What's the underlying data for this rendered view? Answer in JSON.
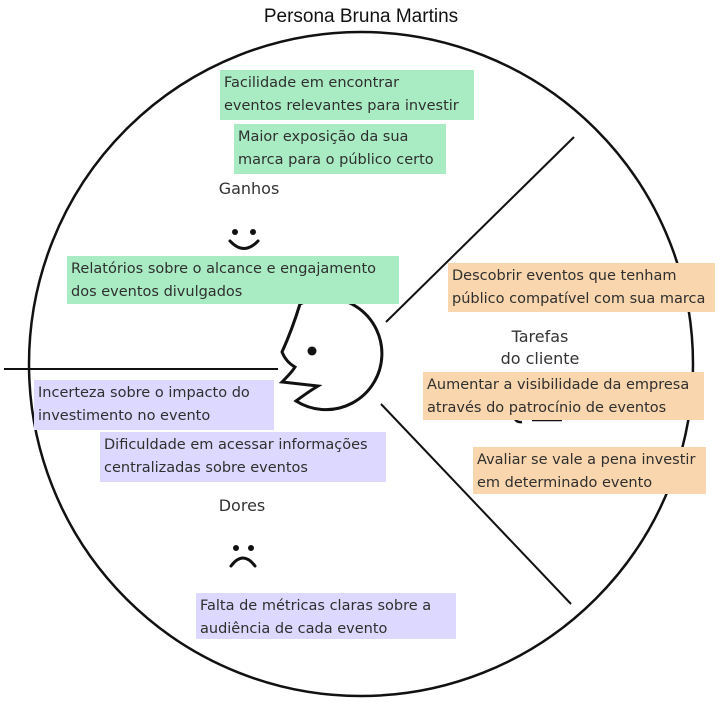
{
  "title": "Persona Bruna Martins",
  "sections": {
    "gains": {
      "label": "Ganhos",
      "notes": [
        {
          "lines": [
            "Facilidade em encontrar",
            "eventos relevantes para investir"
          ]
        },
        {
          "lines": [
            "Maior exposição da sua",
            "marca para o público certo"
          ]
        },
        {
          "lines": [
            "Relatórios sobre o alcance e engajamento",
            "dos eventos divulgados"
          ]
        }
      ]
    },
    "pains": {
      "label": "Dores",
      "notes": [
        {
          "lines": [
            "Incerteza sobre o impacto do",
            "investimento no evento"
          ]
        },
        {
          "lines": [
            "Dificuldade em acessar informações",
            "centralizadas sobre eventos"
          ]
        },
        {
          "lines": [
            "Falta de métricas claras sobre a",
            "audiência de cada evento"
          ]
        }
      ]
    },
    "jobs": {
      "label_line1": "Tarefas",
      "label_line2": "do cliente",
      "notes": [
        {
          "lines": [
            "Descobrir eventos que tenham",
            "público compatível com sua marca"
          ]
        },
        {
          "lines": [
            "Aumentar a visibilidade da empresa",
            "através do patrocínio de eventos"
          ]
        },
        {
          "lines": [
            "Avaliar se vale a pena investir",
            "em determinado evento"
          ]
        }
      ]
    }
  },
  "colors": {
    "gains_note": "#a9ecc4",
    "pains_note": "#dcd8ff",
    "jobs_note": "#f9d6ad",
    "stroke": "#111111"
  },
  "icons": [
    "smile-icon",
    "frown-icon",
    "face-profile-icon"
  ]
}
